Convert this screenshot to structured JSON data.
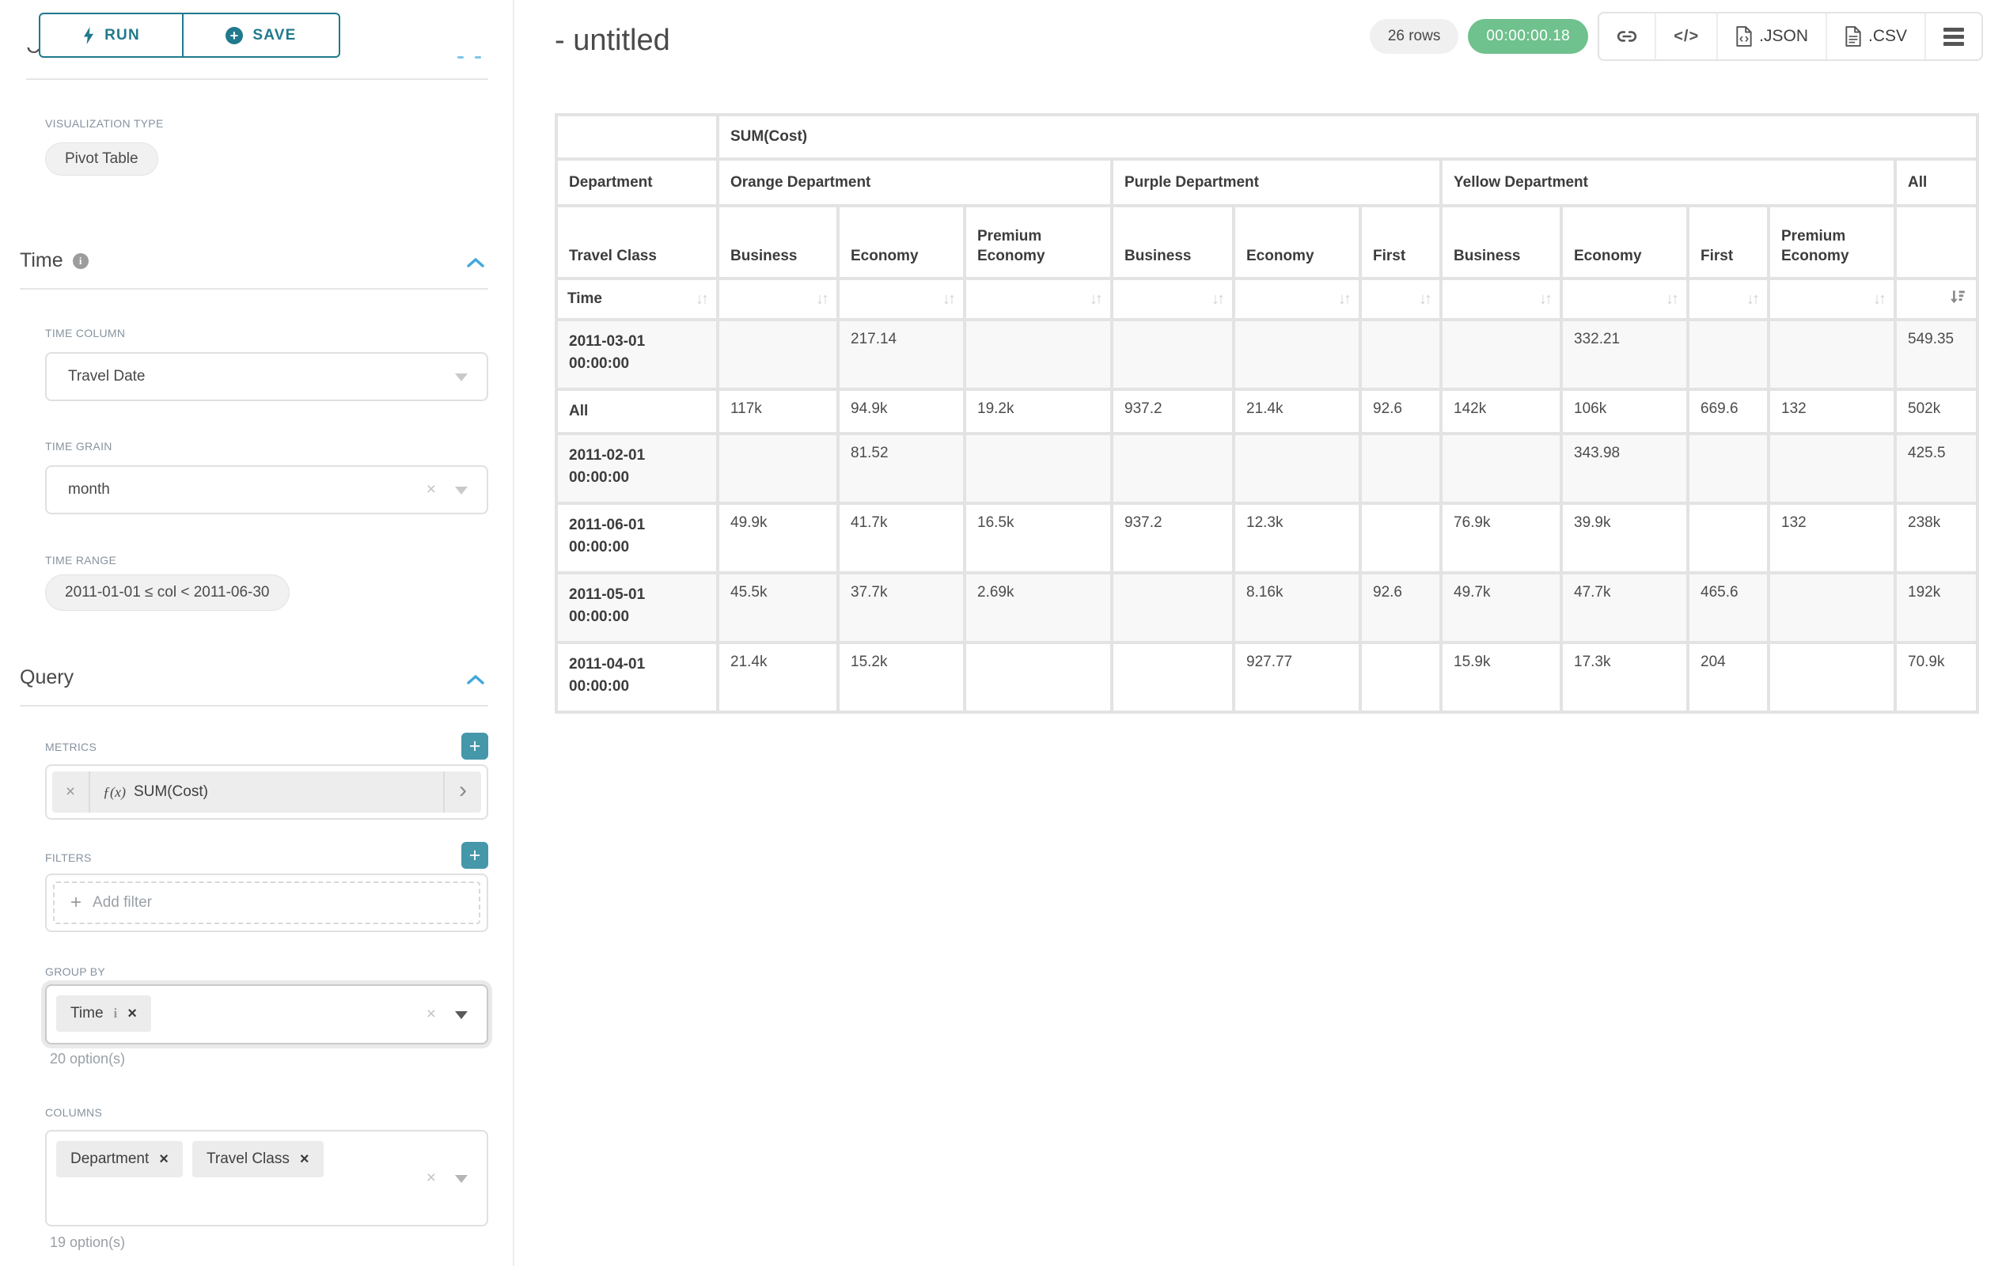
{
  "colors": {
    "accent_teal": "#20798c",
    "plus_button_teal": "#4597aa",
    "chevron_blue": "#41a8dc",
    "success_green": "#6fc18d",
    "label_gray": "#87939f",
    "text_dark": "#484848",
    "grid_gray": "#e3e3e3"
  },
  "sidebar": {
    "run_label": "RUN",
    "save_label": "SAVE",
    "scrolled_heading": "Chart Type",
    "viz_type_label": "VISUALIZATION TYPE",
    "viz_type_value": "Pivot Table",
    "time": {
      "heading": "Time",
      "time_column_label": "TIME COLUMN",
      "time_column_value": "Travel Date",
      "time_grain_label": "TIME GRAIN",
      "time_grain_value": "month",
      "time_range_label": "TIME RANGE",
      "time_range_value": "2011-01-01 ≤ col < 2011-06-30"
    },
    "query": {
      "heading": "Query",
      "metrics_label": "METRICS",
      "metric_fx": "ƒ(x)",
      "metric_value": "SUM(Cost)",
      "filters_label": "FILTERS",
      "add_filter_label": "Add filter",
      "group_by_label": "GROUP BY",
      "group_by_chips": [
        "Time"
      ],
      "group_by_options_note": "20 option(s)",
      "columns_label": "COLUMNS",
      "columns_chips": [
        "Department",
        "Travel Class"
      ],
      "columns_options_note": "19 option(s)"
    }
  },
  "header": {
    "title": "- untitled",
    "row_count": "26 rows",
    "elapsed_time": "00:00:00.18",
    "json_label": ".JSON",
    "csv_label": ".CSV"
  },
  "main": {
    "table": {
      "metric_header": "SUM(Cost)",
      "row_dim_label": "Department",
      "col_dim2_label": "Travel Class",
      "time_label": "Time",
      "departments": [
        {
          "name": "Orange Department",
          "span": 3
        },
        {
          "name": "Purple Department",
          "span": 3
        },
        {
          "name": "Yellow Department",
          "span": 4
        },
        {
          "name": "All",
          "span": 1
        }
      ],
      "travel_classes": [
        "Business",
        "Economy",
        "Premium Economy",
        "Business",
        "Economy",
        "First",
        "Business",
        "Economy",
        "First",
        "Premium Economy",
        ""
      ],
      "rows": [
        {
          "label": "2011-03-01 00:00:00",
          "values": [
            "",
            "217.14",
            "",
            "",
            "",
            "",
            "",
            "332.21",
            "",
            "",
            "549.35"
          ]
        },
        {
          "label": "All",
          "values": [
            "117k",
            "94.9k",
            "19.2k",
            "937.2",
            "21.4k",
            "92.6",
            "142k",
            "106k",
            "669.6",
            "132",
            "502k"
          ]
        },
        {
          "label": "2011-02-01 00:00:00",
          "values": [
            "",
            "81.52",
            "",
            "",
            "",
            "",
            "",
            "343.98",
            "",
            "",
            "425.5"
          ]
        },
        {
          "label": "2011-06-01 00:00:00",
          "values": [
            "49.9k",
            "41.7k",
            "16.5k",
            "937.2",
            "12.3k",
            "",
            "76.9k",
            "39.9k",
            "",
            "132",
            "238k"
          ]
        },
        {
          "label": "2011-05-01 00:00:00",
          "values": [
            "45.5k",
            "37.7k",
            "2.69k",
            "",
            "8.16k",
            "92.6",
            "49.7k",
            "47.7k",
            "465.6",
            "",
            "192k"
          ]
        },
        {
          "label": "2011-04-01 00:00:00",
          "values": [
            "21.4k",
            "15.2k",
            "",
            "",
            "927.77",
            "",
            "15.9k",
            "17.3k",
            "204",
            "",
            "70.9k"
          ]
        }
      ]
    }
  }
}
